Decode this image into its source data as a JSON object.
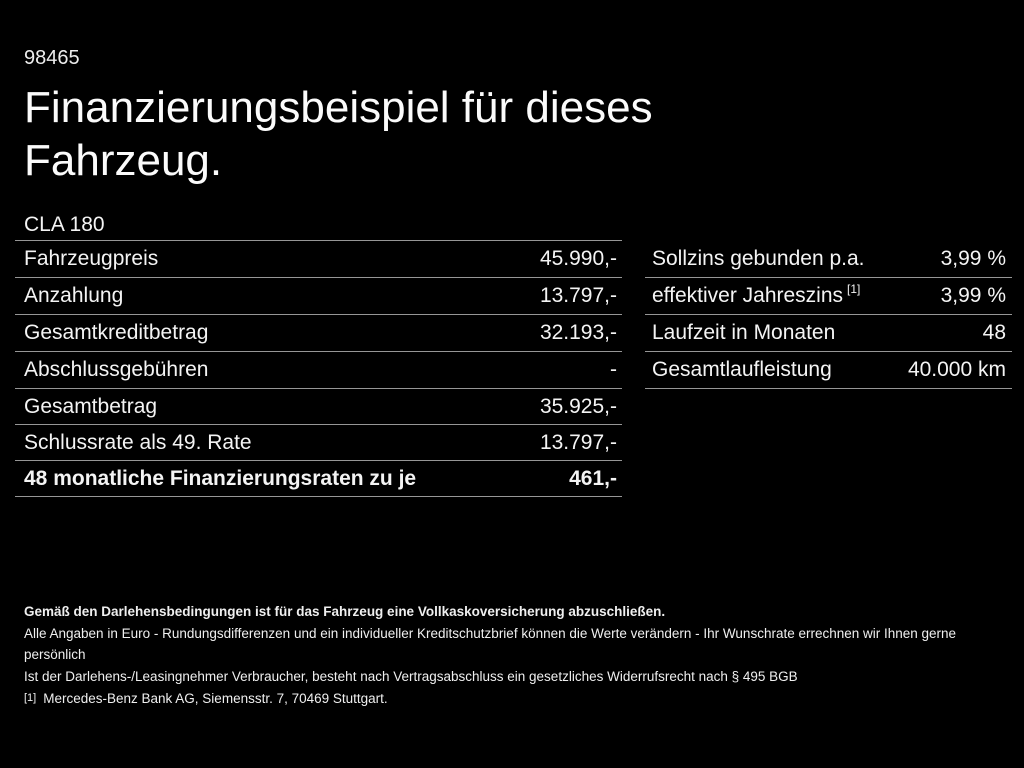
{
  "header": {
    "vehicle_id": "98465",
    "title_line1": "Finanzierungsbeispiel für dieses",
    "title_line2": "Fahrzeug.",
    "model": "CLA 180"
  },
  "left_table": {
    "rows": [
      {
        "label": "Fahrzeugpreis",
        "value": "45.990,-"
      },
      {
        "label": "Anzahlung",
        "value": "13.797,-"
      },
      {
        "label": "Gesamtkreditbetrag",
        "value": "32.193,-"
      },
      {
        "label": "Abschlussgebühren",
        "value": "-"
      },
      {
        "label": "Gesamtbetrag",
        "value": "35.925,-"
      },
      {
        "label": "Schlussrate als 49. Rate",
        "value": "13.797,-"
      },
      {
        "label": "48 monatliche Finanzierungsraten zu je",
        "value": "461,-"
      }
    ]
  },
  "right_table": {
    "rows": [
      {
        "label": "Sollzins gebunden p.a.",
        "value": "3,99 %"
      },
      {
        "label": "effektiver Jahreszins",
        "sup": "[1]",
        "value": "3,99 %"
      },
      {
        "label": "Laufzeit in Monaten",
        "value": "48"
      },
      {
        "label": "Gesamtlaufleistung",
        "value": "40.000 km"
      }
    ]
  },
  "footer": {
    "insurance_note": "Gemäß den Darlehensbedingungen ist für das Fahrzeug eine Vollkaskoversicherung abzuschließen.",
    "disclaimer_1": "Alle Angaben in Euro - Rundungsdifferenzen und ein individueller Kreditschutzbrief können die Werte verändern - Ihr Wunschrate errechnen wir Ihnen gerne persönlich",
    "disclaimer_2": "Ist der Darlehens-/Leasingnehmer Verbraucher, besteht nach Vertragsabschluss ein gesetzliches Widerrufsrecht nach § 495 BGB",
    "footnote_marker": "[1]",
    "footnote_text": "Mercedes-Benz Bank AG, Siemensstr. 7, 70469 Stuttgart."
  },
  "colors": {
    "background": "#000000",
    "text": "#f4f4f4",
    "divider": "#969696"
  }
}
